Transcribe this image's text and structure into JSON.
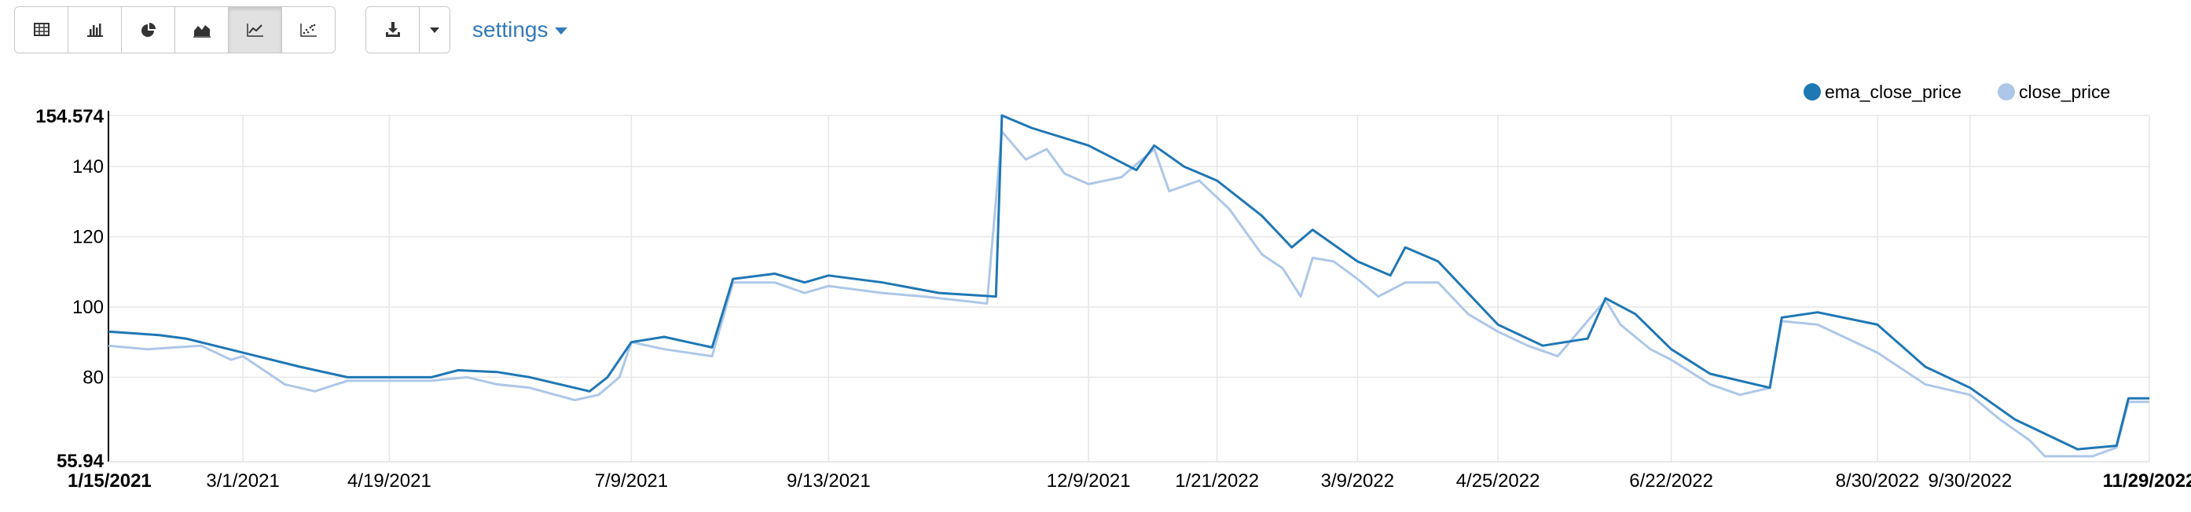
{
  "toolbar": {
    "view_buttons": [
      {
        "name": "table-view-button",
        "icon": "table-icon",
        "active": false
      },
      {
        "name": "bar-chart-button",
        "icon": "bar-chart-icon",
        "active": false
      },
      {
        "name": "pie-chart-button",
        "icon": "pie-chart-icon",
        "active": false
      },
      {
        "name": "area-chart-button",
        "icon": "area-chart-icon",
        "active": false
      },
      {
        "name": "line-chart-button",
        "icon": "line-chart-icon",
        "active": true
      },
      {
        "name": "scatter-chart-button",
        "icon": "scatter-chart-icon",
        "active": false
      }
    ],
    "download_icon": "download-icon",
    "dropdown_icon": "caret-down-icon",
    "settings_label": "settings"
  },
  "colors": {
    "ema_close_price": "#1f77b4",
    "close_price": "#aec7e8",
    "grid": "#e6e6e6",
    "accent": "#337ab7"
  },
  "chart_data": {
    "type": "line",
    "title": "",
    "xlabel": "",
    "ylabel": "",
    "x_range": [
      "2021-01-15",
      "2022-11-29"
    ],
    "ylim": [
      55.94,
      154.574
    ],
    "y_ticks": [
      "55.94",
      "80",
      "100",
      "120",
      "140",
      "154.574"
    ],
    "x_ticks": [
      "1/15/2021",
      "3/1/2021",
      "4/19/2021",
      "7/9/2021",
      "9/13/2021",
      "12/9/2021",
      "1/21/2022",
      "3/9/2022",
      "4/25/2022",
      "6/22/2022",
      "8/30/2022",
      "9/30/2022",
      "11/29/2022"
    ],
    "grid": true,
    "legend_position": "top-right",
    "series": [
      {
        "name": "ema_close_price",
        "points": [
          [
            "2021-01-15",
            93
          ],
          [
            "2021-02-01",
            92
          ],
          [
            "2021-02-10",
            91
          ],
          [
            "2021-03-01",
            87
          ],
          [
            "2021-03-20",
            83
          ],
          [
            "2021-04-05",
            80
          ],
          [
            "2021-04-19",
            80
          ],
          [
            "2021-05-03",
            80
          ],
          [
            "2021-05-12",
            82
          ],
          [
            "2021-05-25",
            81.5
          ],
          [
            "2021-06-05",
            80
          ],
          [
            "2021-06-25",
            76
          ],
          [
            "2021-07-01",
            80
          ],
          [
            "2021-07-09",
            90
          ],
          [
            "2021-07-20",
            91.5
          ],
          [
            "2021-08-05",
            88.5
          ],
          [
            "2021-08-12",
            108
          ],
          [
            "2021-08-26",
            109.5
          ],
          [
            "2021-09-05",
            107
          ],
          [
            "2021-09-13",
            109
          ],
          [
            "2021-10-01",
            107
          ],
          [
            "2021-10-20",
            104
          ],
          [
            "2021-11-08",
            103
          ],
          [
            "2021-11-10",
            154.574
          ],
          [
            "2021-11-20",
            151
          ],
          [
            "2021-12-09",
            146
          ],
          [
            "2021-12-25",
            139
          ],
          [
            "2021-12-31",
            146
          ],
          [
            "2022-01-10",
            140
          ],
          [
            "2022-01-21",
            136
          ],
          [
            "2022-02-05",
            126
          ],
          [
            "2022-02-15",
            117
          ],
          [
            "2022-02-22",
            122
          ],
          [
            "2022-03-09",
            113
          ],
          [
            "2022-03-20",
            109
          ],
          [
            "2022-03-25",
            117
          ],
          [
            "2022-04-05",
            113
          ],
          [
            "2022-04-25",
            95
          ],
          [
            "2022-05-10",
            89
          ],
          [
            "2022-05-25",
            91
          ],
          [
            "2022-05-31",
            102.5
          ],
          [
            "2022-06-10",
            98
          ],
          [
            "2022-06-22",
            88
          ],
          [
            "2022-07-05",
            81
          ],
          [
            "2022-07-25",
            77
          ],
          [
            "2022-07-29",
            97
          ],
          [
            "2022-08-10",
            98.5
          ],
          [
            "2022-08-30",
            95
          ],
          [
            "2022-09-15",
            83
          ],
          [
            "2022-09-30",
            77
          ],
          [
            "2022-10-15",
            68
          ],
          [
            "2022-11-05",
            59.5
          ],
          [
            "2022-11-18",
            60.5
          ],
          [
            "2022-11-22",
            74
          ],
          [
            "2022-11-29",
            74
          ]
        ]
      },
      {
        "name": "close_price",
        "points": [
          [
            "2021-01-15",
            89
          ],
          [
            "2021-01-28",
            88
          ],
          [
            "2021-02-15",
            89
          ],
          [
            "2021-02-25",
            85
          ],
          [
            "2021-03-01",
            86
          ],
          [
            "2021-03-15",
            78
          ],
          [
            "2021-03-25",
            76
          ],
          [
            "2021-04-05",
            79
          ],
          [
            "2021-04-19",
            79
          ],
          [
            "2021-05-03",
            79
          ],
          [
            "2021-05-15",
            80
          ],
          [
            "2021-05-25",
            78
          ],
          [
            "2021-06-05",
            77
          ],
          [
            "2021-06-20",
            73.5
          ],
          [
            "2021-06-28",
            75
          ],
          [
            "2021-07-05",
            80
          ],
          [
            "2021-07-09",
            90
          ],
          [
            "2021-07-20",
            88
          ],
          [
            "2021-08-05",
            86
          ],
          [
            "2021-08-12",
            107
          ],
          [
            "2021-08-26",
            107
          ],
          [
            "2021-09-05",
            104
          ],
          [
            "2021-09-13",
            106
          ],
          [
            "2021-10-01",
            104
          ],
          [
            "2021-10-15",
            103
          ],
          [
            "2021-11-05",
            101
          ],
          [
            "2021-11-10",
            150
          ],
          [
            "2021-11-18",
            142
          ],
          [
            "2021-11-25",
            145
          ],
          [
            "2021-12-01",
            138
          ],
          [
            "2021-12-09",
            135
          ],
          [
            "2021-12-20",
            137
          ],
          [
            "2021-12-31",
            145
          ],
          [
            "2022-01-05",
            133
          ],
          [
            "2022-01-15",
            136
          ],
          [
            "2022-01-25",
            128
          ],
          [
            "2022-02-05",
            115
          ],
          [
            "2022-02-12",
            111
          ],
          [
            "2022-02-18",
            103
          ],
          [
            "2022-02-22",
            114
          ],
          [
            "2022-03-01",
            113
          ],
          [
            "2022-03-09",
            108
          ],
          [
            "2022-03-16",
            103
          ],
          [
            "2022-03-25",
            107
          ],
          [
            "2022-04-05",
            107
          ],
          [
            "2022-04-15",
            98
          ],
          [
            "2022-04-25",
            93
          ],
          [
            "2022-05-05",
            89
          ],
          [
            "2022-05-15",
            86
          ],
          [
            "2022-05-31",
            102
          ],
          [
            "2022-06-05",
            95
          ],
          [
            "2022-06-15",
            88
          ],
          [
            "2022-06-22",
            85
          ],
          [
            "2022-07-05",
            78
          ],
          [
            "2022-07-15",
            75
          ],
          [
            "2022-07-25",
            77
          ],
          [
            "2022-07-29",
            96
          ],
          [
            "2022-08-10",
            95
          ],
          [
            "2022-08-30",
            87
          ],
          [
            "2022-09-15",
            78
          ],
          [
            "2022-09-30",
            75
          ],
          [
            "2022-10-10",
            68
          ],
          [
            "2022-10-20",
            62
          ],
          [
            "2022-10-25",
            57.5
          ],
          [
            "2022-11-10",
            57.5
          ],
          [
            "2022-11-18",
            60
          ],
          [
            "2022-11-22",
            73
          ],
          [
            "2022-11-29",
            73
          ]
        ]
      }
    ]
  }
}
